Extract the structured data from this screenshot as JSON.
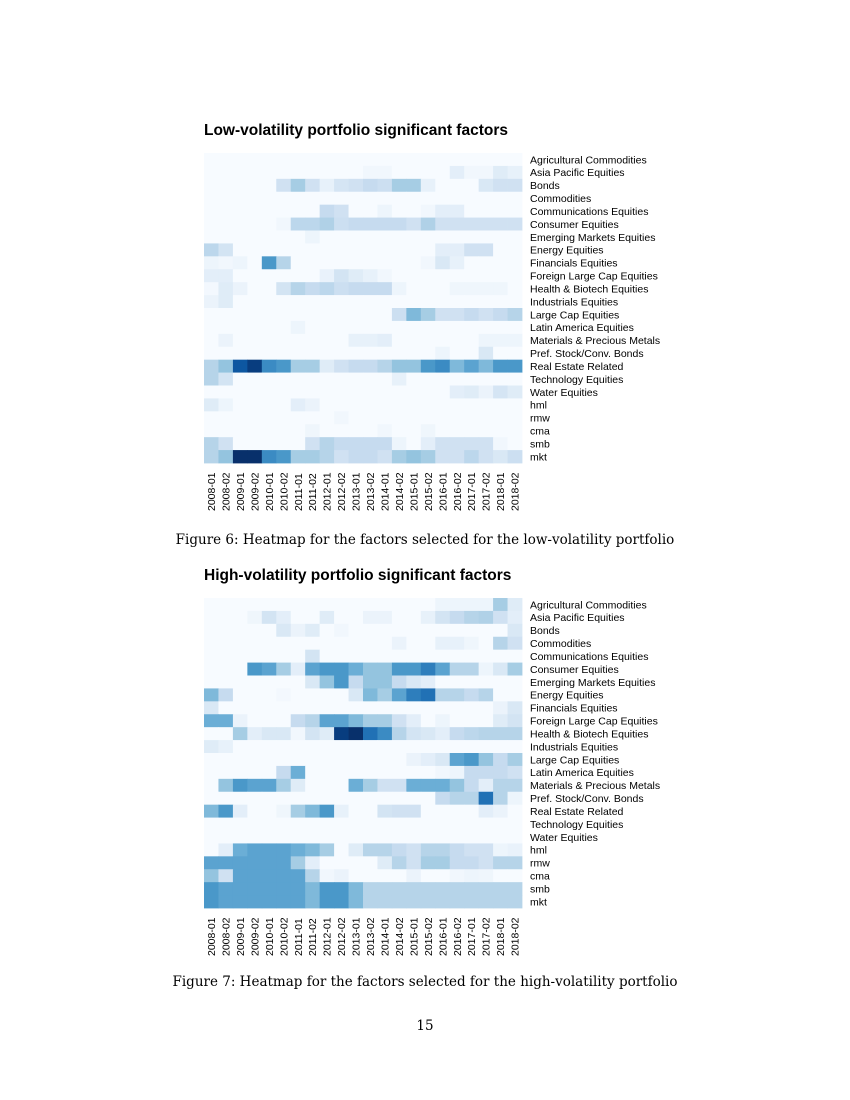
{
  "page_number": "15",
  "chart_data": [
    {
      "type": "heatmap",
      "title": "Low-volatility portfolio significant factors",
      "caption": "Figure 6: Heatmap for the factors selected for the low-volatility portfolio",
      "colormap": [
        "#f7fbff",
        "#deebf7",
        "#c6dbef",
        "#9ecae1",
        "#6baed6",
        "#4292c6",
        "#2171b5",
        "#08519c",
        "#08306b"
      ],
      "columns": [
        "2008-01",
        "2008-02",
        "2009-01",
        "2009-02",
        "2010-01",
        "2010-02",
        "2011-01",
        "2011-02",
        "2012-01",
        "2012-02",
        "2013-01",
        "2013-02",
        "2014-01",
        "2014-02",
        "2015-01",
        "2015-02",
        "2016-01",
        "2016-02",
        "2017-01",
        "2017-02",
        "2018-01",
        "2018-02"
      ],
      "rows": [
        "Agricultural Commodities",
        "Asia Pacific Equities",
        "Bonds",
        "Commodities",
        "Communications Equities",
        "Consumer Equities",
        "Emerging Markets Equities",
        "Energy Equities",
        "Financials Equities",
        "Foreign Large Cap Equities",
        "Health & Biotech Equities",
        "Industrials Equities",
        "Large Cap Equities",
        "Latin America Equities",
        "Materials & Precious Metals",
        "Pref. Stock/Conv. Bonds",
        "Real Estate Related",
        "Technology Equities",
        "Water Equities",
        "hml",
        "rmw",
        "cma",
        "smb",
        "mkt"
      ],
      "values": [
        [
          0,
          0,
          0,
          0,
          0,
          0,
          0,
          0,
          0,
          0,
          0,
          0,
          0,
          0,
          0,
          0,
          0,
          0,
          0,
          0,
          0,
          0
        ],
        [
          0,
          0,
          0,
          0,
          0,
          0,
          0,
          0,
          0,
          0,
          0,
          0.03,
          0.03,
          0,
          0,
          0,
          0,
          0.1,
          0.03,
          0.03,
          0.12,
          0.08
        ],
        [
          0,
          0,
          0,
          0,
          0,
          0.2,
          0.35,
          0.2,
          0.08,
          0.17,
          0.2,
          0.25,
          0.22,
          0.35,
          0.35,
          0.08,
          0,
          0,
          0,
          0.15,
          0.2,
          0.2
        ],
        [
          0,
          0,
          0,
          0,
          0,
          0,
          0,
          0,
          0,
          0,
          0,
          0,
          0,
          0,
          0,
          0,
          0,
          0,
          0,
          0,
          0,
          0
        ],
        [
          0,
          0,
          0,
          0,
          0,
          0,
          0,
          0,
          0.25,
          0.2,
          0,
          0,
          0.05,
          0,
          0,
          0.03,
          0.1,
          0.1,
          0,
          0,
          0,
          0
        ],
        [
          0,
          0,
          0,
          0,
          0,
          0.03,
          0.28,
          0.28,
          0.32,
          0.22,
          0.25,
          0.25,
          0.25,
          0.25,
          0.2,
          0.32,
          0.2,
          0.2,
          0.2,
          0.2,
          0.2,
          0.2
        ],
        [
          0,
          0,
          0,
          0,
          0,
          0,
          0,
          0.05,
          0,
          0,
          0,
          0,
          0,
          0,
          0,
          0,
          0,
          0,
          0,
          0,
          0,
          0
        ],
        [
          0.28,
          0.18,
          0,
          0,
          0,
          0,
          0,
          0,
          0,
          0,
          0,
          0,
          0,
          0,
          0,
          0,
          0.1,
          0.1,
          0.2,
          0.2,
          0,
          0
        ],
        [
          0.05,
          0.03,
          0.05,
          0,
          0.6,
          0.3,
          0,
          0,
          0,
          0,
          0,
          0,
          0,
          0,
          0,
          0.03,
          0.15,
          0.08,
          0,
          0,
          0,
          0
        ],
        [
          0.1,
          0.1,
          0,
          0,
          0,
          0,
          0,
          0,
          0.07,
          0.18,
          0.12,
          0.08,
          0.03,
          0,
          0,
          0,
          0,
          0,
          0,
          0,
          0,
          0
        ],
        [
          0.02,
          0.12,
          0.06,
          0,
          0,
          0.18,
          0.3,
          0.25,
          0.28,
          0.22,
          0.25,
          0.25,
          0.25,
          0.05,
          0,
          0,
          0,
          0.04,
          0.04,
          0.04,
          0.04,
          0
        ],
        [
          0.06,
          0.12,
          0,
          0,
          0,
          0,
          0,
          0,
          0,
          0,
          0,
          0,
          0,
          0,
          0,
          0,
          0,
          0,
          0,
          0,
          0,
          0
        ],
        [
          0,
          0,
          0,
          0,
          0,
          0,
          0,
          0,
          0,
          0,
          0,
          0,
          0,
          0.22,
          0.45,
          0.35,
          0.2,
          0.2,
          0.25,
          0.2,
          0.25,
          0.3
        ],
        [
          0,
          0,
          0,
          0,
          0,
          0,
          0.05,
          0,
          0,
          0,
          0,
          0,
          0,
          0,
          0,
          0,
          0,
          0,
          0,
          0,
          0,
          0
        ],
        [
          0,
          0.06,
          0,
          0,
          0,
          0,
          0,
          0,
          0,
          0,
          0.08,
          0.08,
          0.1,
          0,
          0,
          0,
          0,
          0,
          0,
          0.05,
          0.05,
          0.05
        ],
        [
          0,
          0,
          0,
          0,
          0,
          0,
          0,
          0,
          0,
          0,
          0,
          0,
          0,
          0,
          0,
          0,
          0.05,
          0,
          0,
          0.15,
          0,
          0
        ],
        [
          0.3,
          0.4,
          0.85,
          0.95,
          0.65,
          0.6,
          0.35,
          0.35,
          0.12,
          0.2,
          0.25,
          0.25,
          0.3,
          0.4,
          0.4,
          0.6,
          0.65,
          0.45,
          0.55,
          0.45,
          0.6,
          0.6
        ],
        [
          0.3,
          0.18,
          0,
          0,
          0,
          0,
          0,
          0,
          0,
          0,
          0,
          0,
          0,
          0.08,
          0,
          0,
          0,
          0,
          0,
          0,
          0,
          0
        ],
        [
          0,
          0,
          0,
          0,
          0,
          0,
          0,
          0,
          0,
          0,
          0,
          0,
          0,
          0,
          0,
          0,
          0,
          0.1,
          0.12,
          0.06,
          0.17,
          0.12
        ],
        [
          0.12,
          0.05,
          0,
          0,
          0,
          0,
          0.1,
          0.06,
          0,
          0,
          0,
          0,
          0,
          0,
          0,
          0,
          0,
          0,
          0,
          0,
          0,
          0
        ],
        [
          0,
          0,
          0,
          0,
          0,
          0,
          0,
          0,
          0,
          0.03,
          0,
          0,
          0,
          0,
          0,
          0,
          0,
          0,
          0,
          0,
          0,
          0
        ],
        [
          0,
          0,
          0,
          0,
          0,
          0,
          0,
          0.04,
          0,
          0,
          0,
          0,
          0.03,
          0,
          0,
          0.04,
          0,
          0,
          0,
          0,
          0,
          0
        ],
        [
          0.3,
          0.2,
          0,
          0,
          0,
          0,
          0,
          0.2,
          0.3,
          0.25,
          0.25,
          0.25,
          0.25,
          0.05,
          0,
          0.1,
          0.2,
          0.2,
          0.2,
          0.2,
          0.03,
          0
        ],
        [
          0.3,
          0.4,
          1,
          1,
          0.65,
          0.6,
          0.35,
          0.35,
          0.3,
          0.2,
          0.25,
          0.25,
          0.2,
          0.35,
          0.4,
          0.35,
          0.2,
          0.2,
          0.28,
          0.2,
          0.15,
          0.22
        ]
      ]
    },
    {
      "type": "heatmap",
      "title": "High-volatility portfolio significant factors",
      "caption": "Figure 7: Heatmap for the factors selected for the high-volatility portfolio",
      "colormap": [
        "#f7fbff",
        "#deebf7",
        "#c6dbef",
        "#9ecae1",
        "#6baed6",
        "#4292c6",
        "#2171b5",
        "#08519c",
        "#08306b"
      ],
      "columns": [
        "2008-01",
        "2008-02",
        "2009-01",
        "2009-02",
        "2010-01",
        "2010-02",
        "2011-01",
        "2011-02",
        "2012-01",
        "2012-02",
        "2013-01",
        "2013-02",
        "2014-01",
        "2014-02",
        "2015-01",
        "2015-02",
        "2016-01",
        "2016-02",
        "2017-01",
        "2017-02",
        "2018-01",
        "2018-02"
      ],
      "rows": [
        "Agricultural Commodities",
        "Asia Pacific Equities",
        "Bonds",
        "Commodities",
        "Communications Equities",
        "Consumer Equities",
        "Emerging Markets Equities",
        "Energy Equities",
        "Financials Equities",
        "Foreign Large Cap Equities",
        "Health & Biotech Equities",
        "Industrials Equities",
        "Large Cap Equities",
        "Latin America Equities",
        "Materials & Precious Metals",
        "Pref. Stock/Conv. Bonds",
        "Real Estate Related",
        "Technology Equities",
        "Water Equities",
        "hml",
        "rmw",
        "cma",
        "smb",
        "mkt"
      ],
      "values": [
        [
          0,
          0,
          0,
          0,
          0,
          0,
          0,
          0,
          0,
          0,
          0,
          0,
          0,
          0,
          0,
          0,
          0.05,
          0.05,
          0.05,
          0.05,
          0.35,
          0.12
        ],
        [
          0,
          0,
          0,
          0.04,
          0.18,
          0.1,
          0,
          0,
          0.12,
          0,
          0,
          0.06,
          0.06,
          0,
          0,
          0.08,
          0.18,
          0.25,
          0.3,
          0.32,
          0.2,
          0.1
        ],
        [
          0,
          0,
          0,
          0,
          0,
          0.15,
          0.06,
          0.12,
          0,
          0.03,
          0,
          0,
          0,
          0,
          0,
          0,
          0,
          0,
          0,
          0,
          0,
          0.15
        ],
        [
          0,
          0,
          0,
          0,
          0,
          0,
          0,
          0,
          0,
          0,
          0,
          0,
          0,
          0.06,
          0,
          0,
          0.08,
          0.08,
          0.04,
          0,
          0.3,
          0.2
        ],
        [
          0,
          0,
          0,
          0,
          0,
          0,
          0,
          0.18,
          0,
          0,
          0,
          0,
          0,
          0,
          0,
          0,
          0,
          0,
          0,
          0,
          0,
          0
        ],
        [
          0,
          0,
          0,
          0.6,
          0.55,
          0.35,
          0.1,
          0.55,
          0.6,
          0.6,
          0.5,
          0.4,
          0.4,
          0.6,
          0.6,
          0.7,
          0.55,
          0.3,
          0.3,
          0.05,
          0.15,
          0.35
        ],
        [
          0,
          0,
          0,
          0,
          0,
          0,
          0,
          0.15,
          0.4,
          0.6,
          0.25,
          0.4,
          0.4,
          0.25,
          0.15,
          0.1,
          0,
          0,
          0,
          0,
          0,
          0
        ],
        [
          0.45,
          0.25,
          0,
          0,
          0,
          0.02,
          0,
          0,
          0,
          0,
          0.15,
          0.45,
          0.35,
          0.55,
          0.7,
          0.75,
          0.3,
          0.3,
          0.25,
          0.3,
          0,
          0
        ],
        [
          0.15,
          0,
          0,
          0,
          0,
          0,
          0,
          0,
          0,
          0,
          0,
          0,
          0,
          0,
          0,
          0,
          0,
          0,
          0,
          0,
          0.06,
          0.15
        ],
        [
          0.5,
          0.5,
          0.06,
          0,
          0,
          0,
          0.25,
          0.3,
          0.55,
          0.55,
          0.45,
          0.35,
          0.35,
          0.2,
          0.1,
          0,
          0.05,
          0,
          0,
          0,
          0.12,
          0.18
        ],
        [
          0,
          0,
          0.35,
          0.1,
          0.15,
          0.15,
          0.03,
          0.18,
          0.12,
          0.95,
          1,
          0.75,
          0.65,
          0.3,
          0.18,
          0.15,
          0.1,
          0.25,
          0.28,
          0.3,
          0.3,
          0.3
        ],
        [
          0.12,
          0.08,
          0,
          0,
          0,
          0,
          0,
          0,
          0,
          0,
          0,
          0,
          0,
          0,
          0,
          0,
          0,
          0,
          0,
          0,
          0,
          0
        ],
        [
          0,
          0,
          0,
          0,
          0,
          0,
          0,
          0,
          0,
          0,
          0,
          0,
          0,
          0,
          0.06,
          0.1,
          0.15,
          0.55,
          0.6,
          0.4,
          0.25,
          0.35
        ],
        [
          0,
          0,
          0,
          0,
          0,
          0.25,
          0.5,
          0,
          0,
          0,
          0,
          0,
          0,
          0,
          0,
          0,
          0.03,
          0.05,
          0.25,
          0.25,
          0.25,
          0.2
        ],
        [
          0,
          0.4,
          0.6,
          0.55,
          0.55,
          0.35,
          0.12,
          0,
          0,
          0,
          0.5,
          0.35,
          0.2,
          0.2,
          0.5,
          0.5,
          0.5,
          0.4,
          0.25,
          0.1,
          0.3,
          0.3
        ],
        [
          0,
          0,
          0,
          0,
          0,
          0,
          0,
          0,
          0,
          0,
          0,
          0,
          0,
          0,
          0,
          0,
          0.25,
          0.3,
          0.3,
          0.75,
          0.3,
          0.05
        ],
        [
          0.45,
          0.6,
          0.1,
          0,
          0,
          0.04,
          0.35,
          0.45,
          0.6,
          0.08,
          0,
          0,
          0.18,
          0.2,
          0.2,
          0,
          0,
          0,
          0,
          0.1,
          0.06,
          0
        ],
        [
          0,
          0,
          0,
          0,
          0,
          0,
          0,
          0,
          0,
          0,
          0,
          0,
          0,
          0,
          0,
          0,
          0,
          0,
          0,
          0,
          0,
          0
        ],
        [
          0,
          0,
          0,
          0,
          0,
          0,
          0,
          0,
          0,
          0,
          0,
          0,
          0,
          0,
          0,
          0,
          0,
          0,
          0,
          0,
          0,
          0
        ],
        [
          0,
          0.1,
          0.5,
          0.55,
          0.55,
          0.55,
          0.5,
          0.45,
          0.35,
          0,
          0.12,
          0.3,
          0.3,
          0.25,
          0.2,
          0.3,
          0.3,
          0.25,
          0.2,
          0.2,
          0.05,
          0.07
        ],
        [
          0.55,
          0.55,
          0.55,
          0.55,
          0.55,
          0.55,
          0.35,
          0.1,
          0,
          0,
          0,
          0,
          0.12,
          0.3,
          0.2,
          0.35,
          0.35,
          0.25,
          0.25,
          0.2,
          0.3,
          0.3
        ],
        [
          0.4,
          0.2,
          0.55,
          0.55,
          0.55,
          0.55,
          0.55,
          0.3,
          0.03,
          0.06,
          0,
          0,
          0,
          0,
          0.06,
          0,
          0,
          0.03,
          0.05,
          0.04,
          0,
          0
        ],
        [
          0.6,
          0.55,
          0.55,
          0.55,
          0.55,
          0.55,
          0.55,
          0.45,
          0.6,
          0.6,
          0.45,
          0.3,
          0.3,
          0.3,
          0.3,
          0.3,
          0.3,
          0.3,
          0.3,
          0.3,
          0.3,
          0.3
        ],
        [
          0.6,
          0.55,
          0.55,
          0.55,
          0.55,
          0.55,
          0.55,
          0.45,
          0.6,
          0.6,
          0.45,
          0.3,
          0.3,
          0.3,
          0.3,
          0.3,
          0.3,
          0.3,
          0.3,
          0.3,
          0.3,
          0.3
        ]
      ]
    }
  ]
}
